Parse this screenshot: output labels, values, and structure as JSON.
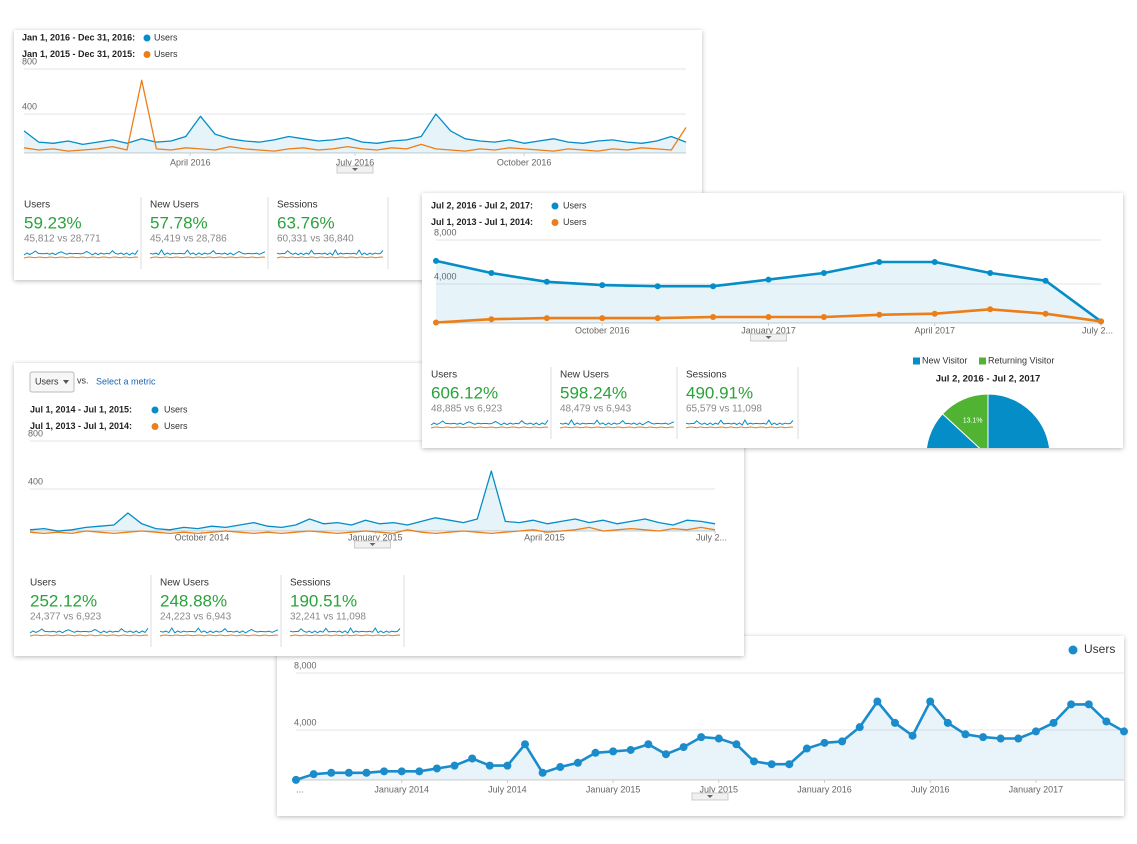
{
  "chart_data": [
    {
      "type": "line",
      "area": true,
      "xlim": [
        0,
        45
      ],
      "ylim": [
        0,
        800
      ],
      "yticks": [
        400,
        800
      ],
      "xticks": [
        {
          "value": 11.3,
          "label": "April 2016"
        },
        {
          "value": 22.5,
          "label": "July 2016"
        },
        {
          "value": 34,
          "label": "October 2016"
        }
      ],
      "x": [
        0,
        1,
        2,
        3,
        4,
        5,
        6,
        7,
        8,
        9,
        10,
        11,
        12,
        13,
        14,
        15,
        16,
        17,
        18,
        19,
        20,
        21,
        22,
        23,
        24,
        25,
        26,
        27,
        28,
        29,
        30,
        31,
        32,
        33,
        34,
        35,
        36,
        37,
        38,
        39,
        40,
        41,
        42,
        43,
        44,
        45
      ],
      "series": [
        {
          "range": "Jan 1, 2016 - Dec 31, 2016:",
          "name": "Users",
          "color": "#058dc7",
          "values": [
            250,
            150,
            140,
            160,
            130,
            150,
            170,
            140,
            180,
            150,
            160,
            200,
            380,
            220,
            180,
            160,
            150,
            170,
            200,
            180,
            160,
            170,
            190,
            150,
            140,
            160,
            170,
            200,
            400,
            250,
            180,
            160,
            150,
            170,
            140,
            160,
            180,
            150,
            140,
            160,
            170,
            150,
            140,
            160,
            200,
            150
          ]
        },
        {
          "range": "Jan 1, 2015 - Dec 31, 2015:",
          "name": "Users",
          "color": "#ed7e17",
          "values": [
            100,
            80,
            90,
            70,
            80,
            90,
            110,
            80,
            700,
            90,
            80,
            100,
            90,
            80,
            110,
            90,
            80,
            70,
            90,
            100,
            80,
            90,
            110,
            90,
            80,
            100,
            90,
            130,
            90,
            80,
            70,
            90,
            80,
            100,
            90,
            80,
            70,
            90,
            80,
            70,
            90,
            80,
            100,
            90,
            80,
            280
          ]
        }
      ]
    },
    {
      "type": "line",
      "area": true,
      "markers": true,
      "xlim": [
        0,
        12
      ],
      "ylim": [
        0,
        8000
      ],
      "yticks": [
        {
          "value": 4000,
          "label": "4,000"
        },
        {
          "value": 8000,
          "label": "8,000"
        }
      ],
      "xticks": [
        {
          "value": 3,
          "label": "October 2016"
        },
        {
          "value": 6,
          "label": "January 2017"
        },
        {
          "value": 9,
          "label": "April 2017"
        },
        {
          "value": 12,
          "label": "July 2..."
        }
      ],
      "x": [
        0,
        1,
        2,
        3,
        4,
        5,
        6,
        7,
        8,
        9,
        10,
        11,
        12
      ],
      "series": [
        {
          "range": "Jul 2, 2016 - Jul 2, 2017:",
          "name": "Users",
          "color": "#058dc7",
          "values": [
            6100,
            5000,
            4200,
            3900,
            3800,
            3800,
            4400,
            5000,
            6000,
            6000,
            5000,
            4300,
            600
          ]
        },
        {
          "range": "Jul 1, 2013 - Jul 1, 2014:",
          "name": "Users",
          "color": "#ed7e17",
          "values": [
            500,
            800,
            900,
            900,
            900,
            1000,
            1000,
            1000,
            1200,
            1300,
            1700,
            1300,
            600
          ]
        }
      ]
    },
    {
      "type": "line",
      "area": true,
      "xlim": [
        0,
        49
      ],
      "ylim": [
        0,
        800
      ],
      "yticks": [
        400,
        800
      ],
      "xticks": [
        {
          "value": 12.3,
          "label": "October 2014"
        },
        {
          "value": 24.7,
          "label": "January 2015"
        },
        {
          "value": 36.8,
          "label": "April 2015"
        },
        {
          "value": 49,
          "label": "July 2..."
        }
      ],
      "x": [
        0,
        1,
        2,
        3,
        4,
        5,
        6,
        7,
        8,
        9,
        10,
        11,
        12,
        13,
        14,
        15,
        16,
        17,
        18,
        19,
        20,
        21,
        22,
        23,
        24,
        25,
        26,
        27,
        28,
        29,
        30,
        31,
        32,
        33,
        34,
        35,
        36,
        37,
        38,
        39,
        40,
        41,
        42,
        43,
        44,
        45,
        46,
        47,
        48,
        49
      ],
      "series": [
        {
          "range": "Jul 1, 2014 - Jul 1, 2015:",
          "name": "Users",
          "color": "#058dc7",
          "values": [
            60,
            70,
            50,
            60,
            80,
            90,
            100,
            200,
            110,
            70,
            60,
            80,
            70,
            90,
            80,
            100,
            120,
            90,
            80,
            100,
            150,
            110,
            120,
            100,
            140,
            110,
            120,
            100,
            130,
            160,
            140,
            120,
            150,
            550,
            130,
            120,
            140,
            110,
            130,
            150,
            120,
            140,
            110,
            130,
            150,
            120,
            100,
            140,
            130,
            110
          ]
        },
        {
          "range": "Jul 1, 2013 - Jul 1, 2014:",
          "name": "Users",
          "color": "#ed7e17",
          "values": [
            40,
            30,
            40,
            30,
            50,
            40,
            30,
            40,
            50,
            40,
            30,
            40,
            30,
            40,
            50,
            40,
            30,
            40,
            30,
            40,
            50,
            40,
            30,
            40,
            50,
            40,
            30,
            60,
            40,
            30,
            40,
            50,
            40,
            30,
            40,
            50,
            60,
            40,
            50,
            60,
            80,
            50,
            60,
            70,
            60,
            50,
            70,
            60,
            80,
            60
          ]
        }
      ]
    },
    {
      "type": "line",
      "area": true,
      "markers": true,
      "xlim": [
        0,
        47
      ],
      "ylim": [
        0,
        8000
      ],
      "yticks": [
        {
          "value": 4000,
          "label": "4,000"
        },
        {
          "value": 8000,
          "label": "8,000"
        }
      ],
      "xticks": [
        {
          "value": 0,
          "label": "..."
        },
        {
          "value": 6,
          "label": "January 2014"
        },
        {
          "value": 12,
          "label": "July 2014"
        },
        {
          "value": 18,
          "label": "January 2015"
        },
        {
          "value": 24,
          "label": "July 2015"
        },
        {
          "value": 30,
          "label": "January 2016"
        },
        {
          "value": 36,
          "label": "July 2016"
        },
        {
          "value": 42,
          "label": "January 2017"
        }
      ],
      "x": [
        0,
        1,
        2,
        3,
        4,
        5,
        6,
        7,
        8,
        9,
        10,
        11,
        12,
        13,
        14,
        15,
        16,
        17,
        18,
        19,
        20,
        21,
        22,
        23,
        24,
        25,
        26,
        27,
        28,
        29,
        30,
        31,
        32,
        33,
        34,
        35,
        36,
        37,
        38,
        39,
        40,
        41,
        42,
        43,
        44,
        45,
        46,
        47
      ],
      "series": [
        {
          "name": "Users",
          "color": "#1a8ccc",
          "values": [
            500,
            900,
            1000,
            1000,
            1000,
            1100,
            1100,
            1100,
            1300,
            1500,
            2000,
            1500,
            1500,
            3000,
            1000,
            1400,
            1700,
            2400,
            2500,
            2600,
            3000,
            2300,
            2800,
            3500,
            3400,
            3000,
            1800,
            1600,
            1600,
            2700,
            3100,
            3200,
            4200,
            6000,
            4500,
            3600,
            6000,
            4500,
            3700,
            3500,
            3400,
            3400,
            3900,
            4500,
            5800,
            5800,
            4600,
            3900
          ]
        }
      ]
    },
    {
      "type": "pie",
      "title": "Jul 2, 2016 - Jul 2, 2017",
      "categories": [
        "New Visitor",
        "Returning Visitor"
      ],
      "values": [
        86.9,
        13.1
      ],
      "colors": [
        "#058dc7",
        "#50b432"
      ],
      "value_labels": [
        null,
        "13.1%"
      ]
    }
  ],
  "metrics": [
    [
      {
        "name": "Users",
        "change": "59.23%",
        "compare": "45,812 vs 28,771"
      },
      {
        "name": "New Users",
        "change": "57.78%",
        "compare": "45,419 vs 28,786"
      },
      {
        "name": "Sessions",
        "change": "63.76%",
        "compare": "60,331 vs 36,840"
      }
    ],
    [
      {
        "name": "Users",
        "change": "606.12%",
        "compare": "48,885 vs 6,923"
      },
      {
        "name": "New Users",
        "change": "598.24%",
        "compare": "48,479 vs 6,943"
      },
      {
        "name": "Sessions",
        "change": "490.91%",
        "compare": "65,579 vs 11,098"
      }
    ],
    [
      {
        "name": "Users",
        "change": "252.12%",
        "compare": "24,377 vs 6,923"
      },
      {
        "name": "New Users",
        "change": "248.88%",
        "compare": "24,223 vs 6,943"
      },
      {
        "name": "Sessions",
        "change": "190.51%",
        "compare": "32,241 vs 11,098"
      }
    ]
  ],
  "controls": {
    "metric": "Users",
    "vs": "vs.",
    "select": "Select a metric"
  }
}
